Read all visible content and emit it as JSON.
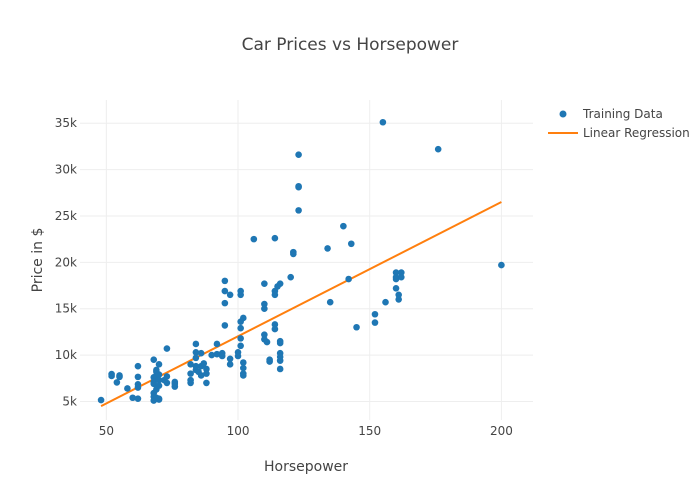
{
  "chart_data": {
    "type": "scatter",
    "title": "Car Prices vs Horsepower",
    "xlabel": "Horsepower",
    "ylabel": "Price in $",
    "xlim": [
      40,
      212
    ],
    "ylim": [
      3000,
      37500
    ],
    "x_ticks": [
      {
        "value": 50,
        "label": "50"
      },
      {
        "value": 100,
        "label": "100"
      },
      {
        "value": 150,
        "label": "150"
      },
      {
        "value": 200,
        "label": "200"
      }
    ],
    "y_ticks": [
      {
        "value": 5000,
        "label": "5k"
      },
      {
        "value": 10000,
        "label": "10k"
      },
      {
        "value": 15000,
        "label": "15k"
      },
      {
        "value": 20000,
        "label": "20k"
      },
      {
        "value": 25000,
        "label": "25k"
      },
      {
        "value": 30000,
        "label": "30k"
      },
      {
        "value": 35000,
        "label": "35k"
      }
    ],
    "grid": true,
    "legend_position": "top-right",
    "series": [
      {
        "name": "Training Data",
        "mode": "markers",
        "color": "#1f77b4",
        "points": [
          [
            48,
            5150
          ],
          [
            52,
            7950
          ],
          [
            52,
            7750
          ],
          [
            54,
            7050
          ],
          [
            55,
            7800
          ],
          [
            55,
            7650
          ],
          [
            58,
            6400
          ],
          [
            60,
            5400
          ],
          [
            62,
            6850
          ],
          [
            62,
            7650
          ],
          [
            62,
            5300
          ],
          [
            62,
            8800
          ],
          [
            62,
            6500
          ],
          [
            68,
            9500
          ],
          [
            68,
            7600
          ],
          [
            68,
            7100
          ],
          [
            68,
            6900
          ],
          [
            68,
            5900
          ],
          [
            68,
            5500
          ],
          [
            68,
            5100
          ],
          [
            69,
            5400
          ],
          [
            69,
            6300
          ],
          [
            69,
            7800
          ],
          [
            69,
            8200
          ],
          [
            69,
            8400
          ],
          [
            70,
            9000
          ],
          [
            70,
            7900
          ],
          [
            70,
            7300
          ],
          [
            70,
            6700
          ],
          [
            70,
            5200
          ],
          [
            70,
            5300
          ],
          [
            72,
            7300
          ],
          [
            73,
            7000
          ],
          [
            73,
            7700
          ],
          [
            73,
            10700
          ],
          [
            76,
            7100
          ],
          [
            76,
            6600
          ],
          [
            76,
            6900
          ],
          [
            82,
            7000
          ],
          [
            82,
            7300
          ],
          [
            82,
            8000
          ],
          [
            82,
            9000
          ],
          [
            84,
            8400
          ],
          [
            84,
            8800
          ],
          [
            84,
            9700
          ],
          [
            84,
            10300
          ],
          [
            84,
            11200
          ],
          [
            85,
            8200
          ],
          [
            86,
            7800
          ],
          [
            86,
            8800
          ],
          [
            86,
            10200
          ],
          [
            87,
            9100
          ],
          [
            88,
            8500
          ],
          [
            88,
            8000
          ],
          [
            88,
            7000
          ],
          [
            90,
            10000
          ],
          [
            92,
            10100
          ],
          [
            92,
            11200
          ],
          [
            94,
            10200
          ],
          [
            94,
            9900
          ],
          [
            95,
            13200
          ],
          [
            95,
            15600
          ],
          [
            95,
            16900
          ],
          [
            95,
            18000
          ],
          [
            97,
            16500
          ],
          [
            97,
            9600
          ],
          [
            97,
            9000
          ],
          [
            100,
            9900
          ],
          [
            100,
            10300
          ],
          [
            101,
            16500
          ],
          [
            101,
            16900
          ],
          [
            101,
            11000
          ],
          [
            101,
            11800
          ],
          [
            101,
            12900
          ],
          [
            101,
            13600
          ],
          [
            102,
            14000
          ],
          [
            102,
            9200
          ],
          [
            102,
            8600
          ],
          [
            102,
            8000
          ],
          [
            102,
            7800
          ],
          [
            106,
            22500
          ],
          [
            110,
            17700
          ],
          [
            110,
            15500
          ],
          [
            110,
            15000
          ],
          [
            110,
            12200
          ],
          [
            110,
            11700
          ],
          [
            111,
            11400
          ],
          [
            112,
            9300
          ],
          [
            112,
            9500
          ],
          [
            114,
            22600
          ],
          [
            114,
            16900
          ],
          [
            114,
            16500
          ],
          [
            114,
            13300
          ],
          [
            114,
            12800
          ],
          [
            115,
            17400
          ],
          [
            116,
            17700
          ],
          [
            116,
            11500
          ],
          [
            116,
            11300
          ],
          [
            116,
            10200
          ],
          [
            116,
            9800
          ],
          [
            116,
            9400
          ],
          [
            116,
            8500
          ],
          [
            120,
            18400
          ],
          [
            121,
            21100
          ],
          [
            121,
            20900
          ],
          [
            123,
            31600
          ],
          [
            123,
            28200
          ],
          [
            123,
            28100
          ],
          [
            123,
            25600
          ],
          [
            134,
            21500
          ],
          [
            135,
            15700
          ],
          [
            140,
            23900
          ],
          [
            142,
            18200
          ],
          [
            143,
            22000
          ],
          [
            145,
            13000
          ],
          [
            152,
            14400
          ],
          [
            152,
            13500
          ],
          [
            155,
            35100
          ],
          [
            156,
            15700
          ],
          [
            160,
            18900
          ],
          [
            160,
            18400
          ],
          [
            160,
            18200
          ],
          [
            160,
            17200
          ],
          [
            161,
            16000
          ],
          [
            161,
            16500
          ],
          [
            162,
            18900
          ],
          [
            162,
            18400
          ],
          [
            176,
            32200
          ],
          [
            200,
            19700
          ]
        ]
      },
      {
        "name": "Linear Regression",
        "mode": "lines",
        "color": "#ff7f0e",
        "x": [
          48,
          200
        ],
        "y": [
          4500,
          26500
        ]
      }
    ]
  }
}
